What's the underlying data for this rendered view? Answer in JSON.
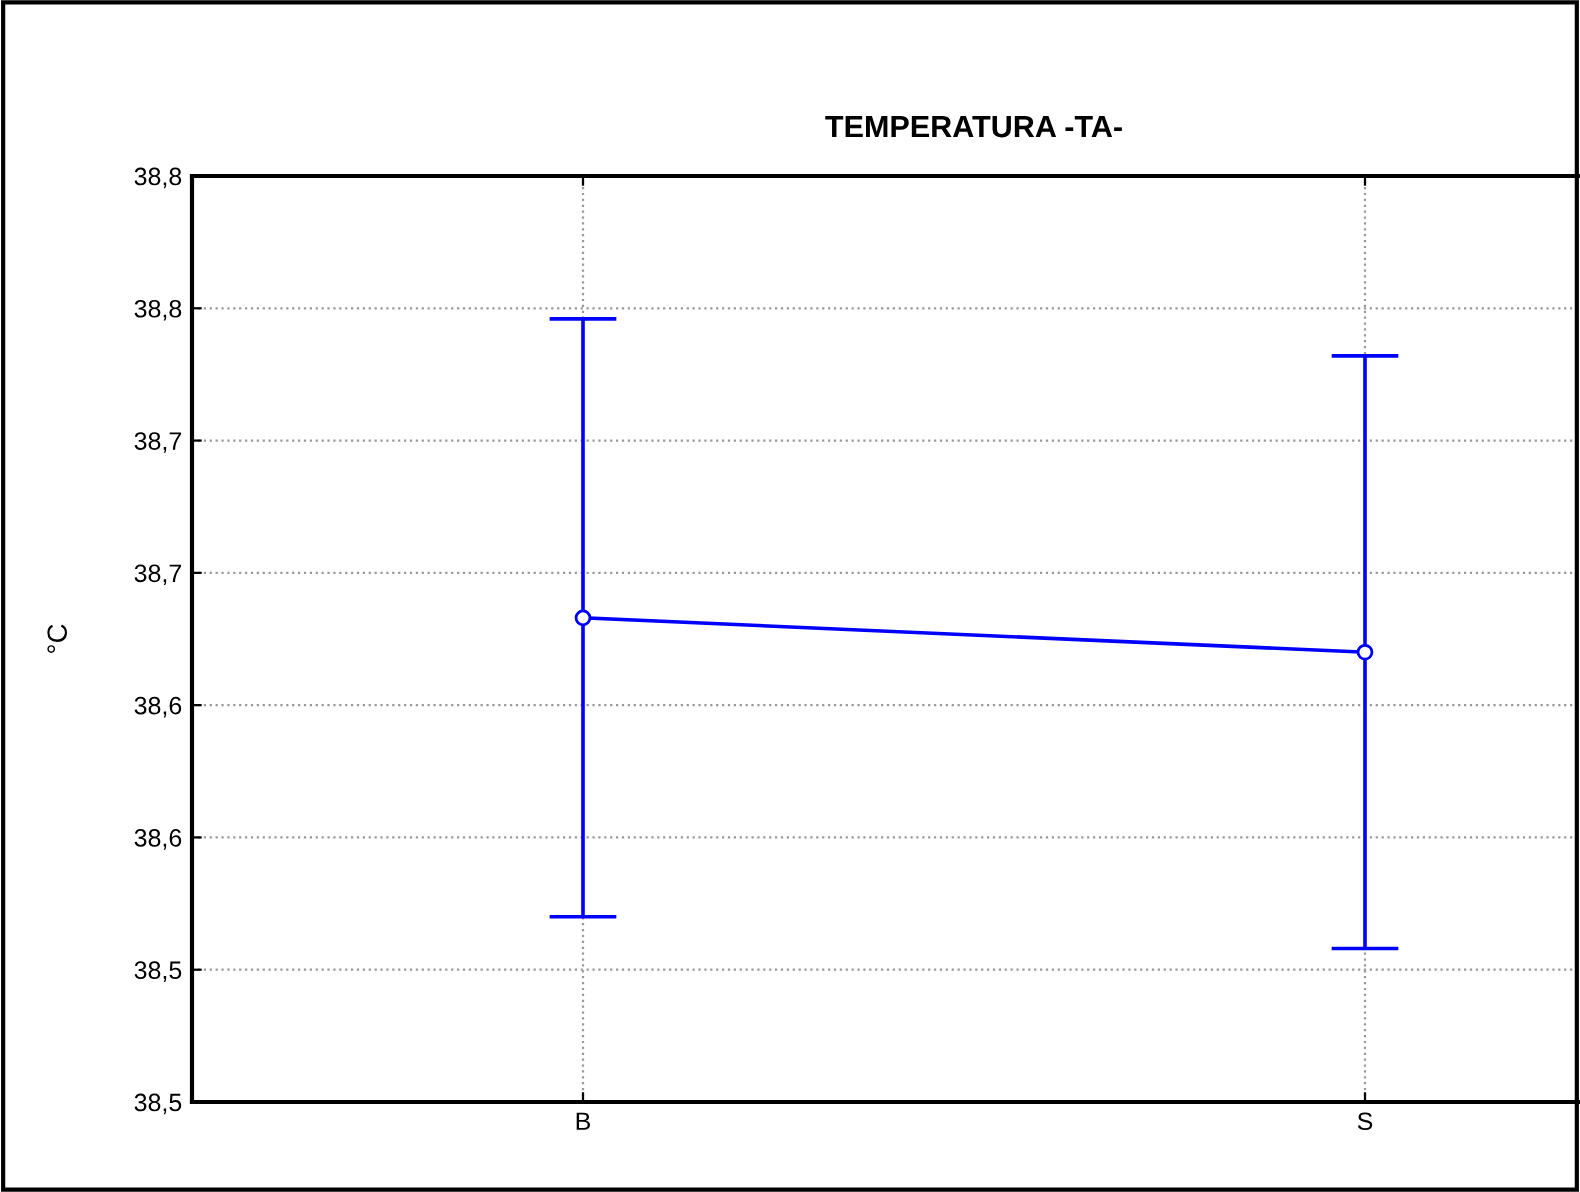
{
  "chart_data": {
    "type": "line",
    "title": "TEMPERATURA -TA-",
    "ylabel": "°C",
    "categories": [
      "B",
      "S"
    ],
    "series": [
      {
        "color": "#0000ff",
        "values": [
          38.683,
          38.67
        ],
        "errors": [
          0.113,
          0.112
        ]
      }
    ],
    "ylim": [
      38.5,
      38.85
    ],
    "yticks": [
      {
        "value": 38.5,
        "label": "38,5"
      },
      {
        "value": 38.55,
        "label": "38,5"
      },
      {
        "value": 38.6,
        "label": "38,6"
      },
      {
        "value": 38.65,
        "label": "38,6"
      },
      {
        "value": 38.7,
        "label": "38,7"
      },
      {
        "value": 38.75,
        "label": "38,7"
      },
      {
        "value": 38.8,
        "label": "38,8"
      },
      {
        "value": 38.85,
        "label": "38,8"
      }
    ],
    "grid": true,
    "marker": "circle",
    "line_style": "solid",
    "legend": false
  }
}
